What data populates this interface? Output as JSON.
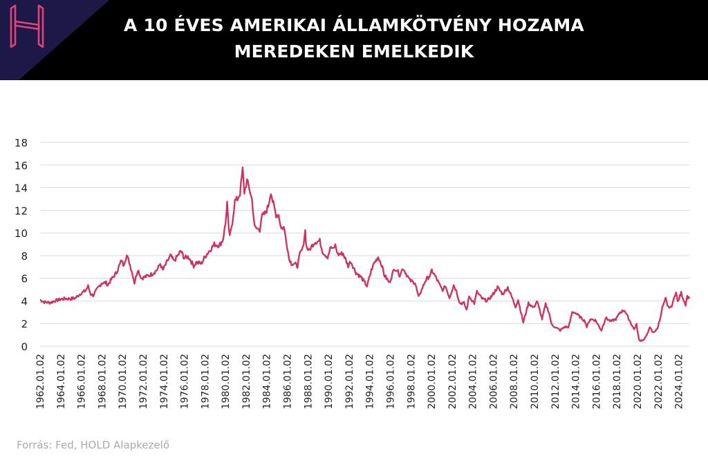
{
  "header": {
    "title_line1": "A 10 ÉVES AMERIKAI ÁLLAMKÖTVÉNY HOZAMA",
    "title_line2": "MEREDEKEN EMELKEDIK",
    "logo_icon": "hold-logo-icon",
    "bg_color": "#000000",
    "corner_color": "#1c1848",
    "logo_color": "#e0447a"
  },
  "source": "Forrás: Fed, HOLD Alapkezelő",
  "chart_data": {
    "type": "line",
    "title": "A 10 ÉVES AMERIKAI ÁLLAMKÖTVÉNY HOZAMA MEREDEKEN EMELKEDIK",
    "xlabel": "",
    "ylabel": "",
    "ylim": [
      0,
      18
    ],
    "yticks": [
      0,
      2,
      4,
      6,
      8,
      10,
      12,
      14,
      16,
      18
    ],
    "xlim": [
      "1962-01-02",
      "2025-01-15"
    ],
    "xtick_labels": [
      "1962.01.02",
      "1964.01.02",
      "1966.01.02",
      "1968.01.02",
      "1970.01.02",
      "1972.01.02",
      "1974.01.02",
      "1976.01.02",
      "1978.01.02",
      "1980.01.02",
      "1982.01.02",
      "1984.01.02",
      "1986.01.02",
      "1988.01.02",
      "1990.01.02",
      "1992.01.02",
      "1994.01.02",
      "1996.01.02",
      "1998.01.02",
      "2000.01.02",
      "2002.01.02",
      "2004.01.02",
      "2006.01.02",
      "2008.01.02",
      "2010.01.02",
      "2012.01.02",
      "2014.01.02",
      "2016.01.02",
      "2018.01.02",
      "2020.01.02",
      "2022.01.02",
      "2024.01.02"
    ],
    "grid": true,
    "line_color": "#cc3366",
    "series": [
      {
        "points": [
          [
            "1962-01-02",
            4.1
          ],
          [
            "1962-06-01",
            3.9
          ],
          [
            "1963-01-01",
            3.85
          ],
          [
            "1963-06-01",
            4.0
          ],
          [
            "1964-01-01",
            4.15
          ],
          [
            "1964-06-01",
            4.2
          ],
          [
            "1965-01-01",
            4.2
          ],
          [
            "1965-06-01",
            4.25
          ],
          [
            "1966-01-01",
            4.7
          ],
          [
            "1966-06-01",
            4.9
          ],
          [
            "1966-09-01",
            5.3
          ],
          [
            "1966-12-01",
            4.6
          ],
          [
            "1967-03-01",
            4.5
          ],
          [
            "1967-09-01",
            5.2
          ],
          [
            "1968-01-01",
            5.6
          ],
          [
            "1968-06-01",
            5.6
          ],
          [
            "1968-08-01",
            5.4
          ],
          [
            "1968-12-01",
            5.9
          ],
          [
            "1969-06-01",
            6.5
          ],
          [
            "1969-12-01",
            7.6
          ],
          [
            "1970-02-01",
            7.2
          ],
          [
            "1970-06-01",
            8.0
          ],
          [
            "1970-09-01",
            7.4
          ],
          [
            "1971-01-01",
            6.3
          ],
          [
            "1971-03-01",
            5.6
          ],
          [
            "1971-07-01",
            6.8
          ],
          [
            "1971-11-01",
            6.0
          ],
          [
            "1972-06-01",
            6.2
          ],
          [
            "1972-12-01",
            6.4
          ],
          [
            "1973-06-01",
            6.8
          ],
          [
            "1973-09-01",
            7.3
          ],
          [
            "1973-12-01",
            6.7
          ],
          [
            "1974-06-01",
            7.6
          ],
          [
            "1974-09-01",
            8.0
          ],
          [
            "1975-01-01",
            7.5
          ],
          [
            "1975-09-01",
            8.4
          ],
          [
            "1976-01-01",
            7.8
          ],
          [
            "1976-06-01",
            7.9
          ],
          [
            "1976-12-01",
            7.1
          ],
          [
            "1977-03-01",
            7.4
          ],
          [
            "1977-09-01",
            7.3
          ],
          [
            "1978-01-01",
            7.9
          ],
          [
            "1978-06-01",
            8.4
          ],
          [
            "1978-12-01",
            9.0
          ],
          [
            "1979-06-01",
            8.9
          ],
          [
            "1979-10-01",
            9.4
          ],
          [
            "1980-01-01",
            10.8
          ],
          [
            "1980-03-01",
            12.7
          ],
          [
            "1980-04-01",
            11.2
          ],
          [
            "1980-06-01",
            9.6
          ],
          [
            "1980-09-01",
            11.0
          ],
          [
            "1980-12-01",
            12.8
          ],
          [
            "1981-03-01",
            13.0
          ],
          [
            "1981-06-01",
            13.5
          ],
          [
            "1981-09-01",
            15.6
          ],
          [
            "1981-11-01",
            13.6
          ],
          [
            "1982-02-01",
            14.6
          ],
          [
            "1982-05-01",
            13.9
          ],
          [
            "1982-08-01",
            12.9
          ],
          [
            "1982-11-01",
            10.5
          ],
          [
            "1983-01-01",
            10.4
          ],
          [
            "1983-05-01",
            10.3
          ],
          [
            "1983-07-01",
            11.4
          ],
          [
            "1983-12-01",
            11.8
          ],
          [
            "1984-03-01",
            12.4
          ],
          [
            "1984-06-01",
            13.7
          ],
          [
            "1984-08-01",
            12.8
          ],
          [
            "1984-12-01",
            11.6
          ],
          [
            "1985-03-01",
            11.6
          ],
          [
            "1985-06-01",
            10.4
          ],
          [
            "1985-09-01",
            10.5
          ],
          [
            "1985-12-01",
            9.3
          ],
          [
            "1986-03-01",
            7.8
          ],
          [
            "1986-06-01",
            7.3
          ],
          [
            "1986-09-01",
            7.3
          ],
          [
            "1987-01-01",
            7.1
          ],
          [
            "1987-04-01",
            8.2
          ],
          [
            "1987-07-01",
            8.6
          ],
          [
            "1987-10-01",
            10.2
          ],
          [
            "1987-11-01",
            8.9
          ],
          [
            "1988-02-01",
            8.4
          ],
          [
            "1988-06-01",
            8.9
          ],
          [
            "1988-09-01",
            9.2
          ],
          [
            "1989-03-01",
            9.3
          ],
          [
            "1989-06-01",
            8.4
          ],
          [
            "1989-09-01",
            8.1
          ],
          [
            "1989-12-01",
            7.9
          ],
          [
            "1990-04-01",
            8.8
          ],
          [
            "1990-06-01",
            8.5
          ],
          [
            "1990-09-01",
            8.9
          ],
          [
            "1990-12-01",
            8.1
          ],
          [
            "1991-06-01",
            8.2
          ],
          [
            "1991-12-01",
            7.1
          ],
          [
            "1992-03-01",
            7.5
          ],
          [
            "1992-09-01",
            6.5
          ],
          [
            "1993-03-01",
            6.1
          ],
          [
            "1993-10-01",
            5.3
          ],
          [
            "1994-03-01",
            6.7
          ],
          [
            "1994-06-01",
            7.3
          ],
          [
            "1994-11-01",
            7.9
          ],
          [
            "1995-03-01",
            7.2
          ],
          [
            "1995-06-01",
            6.3
          ],
          [
            "1995-12-01",
            5.6
          ],
          [
            "1996-06-01",
            6.9
          ],
          [
            "1996-09-01",
            6.7
          ],
          [
            "1996-12-01",
            6.3
          ],
          [
            "1997-04-01",
            6.9
          ],
          [
            "1997-09-01",
            6.2
          ],
          [
            "1997-12-01",
            5.8
          ],
          [
            "1998-06-01",
            5.6
          ],
          [
            "1998-10-01",
            4.3
          ],
          [
            "1998-12-01",
            4.7
          ],
          [
            "1999-06-01",
            5.8
          ],
          [
            "1999-12-01",
            6.3
          ],
          [
            "2000-01-15",
            6.7
          ],
          [
            "2000-06-01",
            6.1
          ],
          [
            "2000-12-01",
            5.2
          ],
          [
            "2001-03-01",
            4.9
          ],
          [
            "2001-05-01",
            5.4
          ],
          [
            "2001-10-01",
            4.3
          ],
          [
            "2002-03-01",
            5.4
          ],
          [
            "2002-06-01",
            4.9
          ],
          [
            "2002-10-01",
            3.8
          ],
          [
            "2003-03-01",
            3.8
          ],
          [
            "2003-06-01",
            3.2
          ],
          [
            "2003-09-01",
            4.4
          ],
          [
            "2004-03-01",
            3.8
          ],
          [
            "2004-06-01",
            4.8
          ],
          [
            "2004-12-01",
            4.2
          ],
          [
            "2005-06-01",
            4.0
          ],
          [
            "2005-12-01",
            4.5
          ],
          [
            "2006-06-01",
            5.2
          ],
          [
            "2006-12-01",
            4.6
          ],
          [
            "2007-06-01",
            5.2
          ],
          [
            "2007-12-01",
            4.1
          ],
          [
            "2008-03-01",
            3.5
          ],
          [
            "2008-06-01",
            4.1
          ],
          [
            "2008-12-01",
            2.1
          ],
          [
            "2009-06-01",
            3.8
          ],
          [
            "2009-12-01",
            3.4
          ],
          [
            "2010-04-01",
            4.0
          ],
          [
            "2010-10-01",
            2.4
          ],
          [
            "2011-02-01",
            3.7
          ],
          [
            "2011-06-01",
            3.0
          ],
          [
            "2011-09-01",
            1.9
          ],
          [
            "2012-07-01",
            1.4
          ],
          [
            "2012-12-01",
            1.7
          ],
          [
            "2013-05-01",
            1.7
          ],
          [
            "2013-09-01",
            3.0
          ],
          [
            "2013-12-01",
            3.0
          ],
          [
            "2014-06-01",
            2.6
          ],
          [
            "2014-12-01",
            2.2
          ],
          [
            "2015-02-01",
            1.7
          ],
          [
            "2015-06-01",
            2.4
          ],
          [
            "2015-12-01",
            2.3
          ],
          [
            "2016-07-01",
            1.4
          ],
          [
            "2016-12-01",
            2.5
          ],
          [
            "2017-06-01",
            2.2
          ],
          [
            "2017-12-01",
            2.4
          ],
          [
            "2018-05-01",
            3.0
          ],
          [
            "2018-10-01",
            3.2
          ],
          [
            "2019-01-01",
            2.7
          ],
          [
            "2019-09-01",
            1.5
          ],
          [
            "2019-12-01",
            1.9
          ],
          [
            "2020-03-01",
            0.5
          ],
          [
            "2020-08-01",
            0.55
          ],
          [
            "2020-12-01",
            0.95
          ],
          [
            "2021-03-01",
            1.7
          ],
          [
            "2021-07-01",
            1.2
          ],
          [
            "2021-12-01",
            1.5
          ],
          [
            "2022-03-01",
            2.3
          ],
          [
            "2022-06-01",
            3.4
          ],
          [
            "2022-10-01",
            4.2
          ],
          [
            "2022-12-01",
            3.5
          ],
          [
            "2023-04-01",
            3.4
          ],
          [
            "2023-07-01",
            4.0
          ],
          [
            "2023-10-01",
            4.9
          ],
          [
            "2023-12-01",
            3.9
          ],
          [
            "2024-04-01",
            4.7
          ],
          [
            "2024-06-01",
            4.3
          ],
          [
            "2024-09-01",
            3.7
          ],
          [
            "2024-11-01",
            4.4
          ],
          [
            "2025-01-15",
            4.2
          ]
        ]
      }
    ]
  }
}
